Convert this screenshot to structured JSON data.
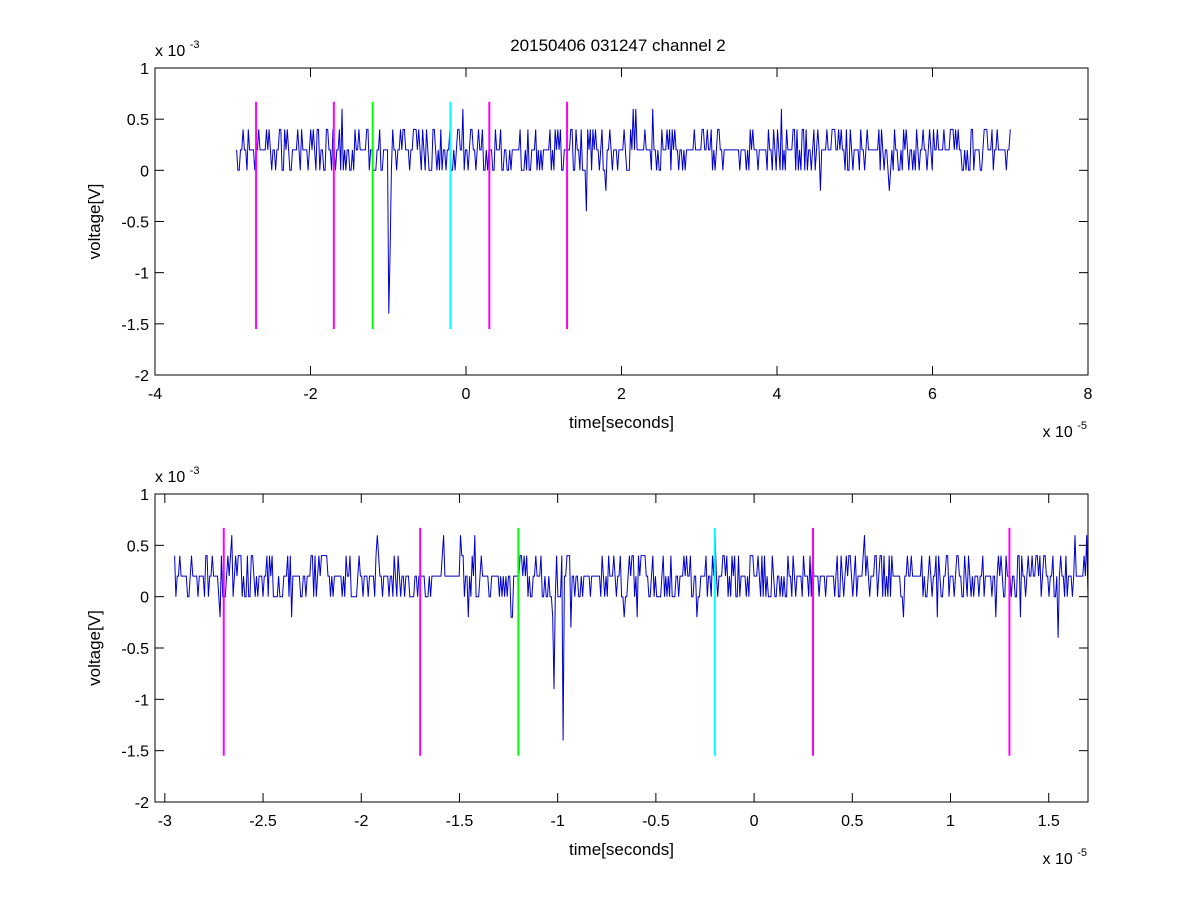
{
  "figure": {
    "title": "20150406 031247 channel 2"
  },
  "chart_data": [
    {
      "type": "line",
      "title": "20150406 031247 channel 2",
      "xlabel": "time[seconds]",
      "ylabel": "voltage[V]",
      "x_exponent": "x 10",
      "x_exponent_power": "-5",
      "y_exponent": "x 10",
      "y_exponent_power": "-3",
      "xlim": [
        -4,
        8
      ],
      "ylim": [
        -2,
        1
      ],
      "xticks": [
        -4,
        -2,
        0,
        2,
        4,
        6,
        8
      ],
      "xtick_labels": [
        "-4",
        "-2",
        "0",
        "2",
        "4",
        "6",
        "8"
      ],
      "yticks": [
        -2,
        -1.5,
        -1,
        -0.5,
        0,
        0.5,
        1
      ],
      "ytick_labels": [
        "-2",
        "-1.5",
        "-1",
        "-0.5",
        "0",
        "0.5",
        "1"
      ],
      "grid": false,
      "signal": {
        "color": "#0000cc",
        "x_start": -2.95,
        "x_end": 7.0,
        "baseline_levels": [
          0,
          0.2,
          0.4
        ],
        "spikes": [
          {
            "x": -1.0,
            "y": -1.4
          },
          {
            "x": -0.97,
            "y": -0.8
          },
          {
            "x": 1.55,
            "y": -0.4
          },
          {
            "x": 4.05,
            "y": 0.6
          },
          {
            "x": 2.4,
            "y": 0.6
          },
          {
            "x": -1.6,
            "y": 0.6
          }
        ]
      },
      "markers": [
        {
          "x": -2.7,
          "color": "#ff00ff"
        },
        {
          "x": -1.7,
          "color": "#ff00ff"
        },
        {
          "x": -1.2,
          "color": "#00ff00"
        },
        {
          "x": -0.2,
          "color": "#00ffff"
        },
        {
          "x": 0.3,
          "color": "#ff00ff"
        },
        {
          "x": 1.3,
          "color": "#ff00ff"
        }
      ],
      "marker_range": [
        -1.55,
        0.67
      ]
    },
    {
      "type": "line",
      "title": "",
      "xlabel": "time[seconds]",
      "ylabel": "voltage[V]",
      "x_exponent": "x 10",
      "x_exponent_power": "-5",
      "y_exponent": "x 10",
      "y_exponent_power": "-3",
      "xlim": [
        -3.05,
        1.7
      ],
      "ylim": [
        -2,
        1
      ],
      "xticks": [
        -3,
        -2.5,
        -2,
        -1.5,
        -1,
        -0.5,
        0,
        0.5,
        1,
        1.5
      ],
      "xtick_labels": [
        "-3",
        "-2.5",
        "-2",
        "-1.5",
        "-1",
        "-0.5",
        "0",
        "0.5",
        "1",
        "1.5"
      ],
      "yticks": [
        -2,
        -1.5,
        -1,
        -0.5,
        0,
        0.5,
        1
      ],
      "ytick_labels": [
        "-2",
        "-1.5",
        "-1",
        "-0.5",
        "0",
        "0.5",
        "1"
      ],
      "grid": false,
      "signal": {
        "color": "#0000cc",
        "x_start": -2.95,
        "x_end": 1.7,
        "baseline_levels": [
          0,
          0.2,
          0.4
        ],
        "spikes": [
          {
            "x": -0.97,
            "y": -1.4
          },
          {
            "x": -1.02,
            "y": -0.9
          },
          {
            "x": -0.93,
            "y": -0.3
          },
          {
            "x": 1.55,
            "y": -0.4
          },
          {
            "x": -1.58,
            "y": 0.6
          },
          {
            "x": -0.2,
            "y": 0.6
          }
        ]
      },
      "markers": [
        {
          "x": -2.7,
          "color": "#ff00ff"
        },
        {
          "x": -1.7,
          "color": "#ff00ff"
        },
        {
          "x": -1.2,
          "color": "#00ff00"
        },
        {
          "x": -0.2,
          "color": "#00ffff"
        },
        {
          "x": 0.3,
          "color": "#ff00ff"
        },
        {
          "x": 1.3,
          "color": "#ff00ff"
        }
      ],
      "marker_range": [
        -1.55,
        0.67
      ]
    }
  ]
}
